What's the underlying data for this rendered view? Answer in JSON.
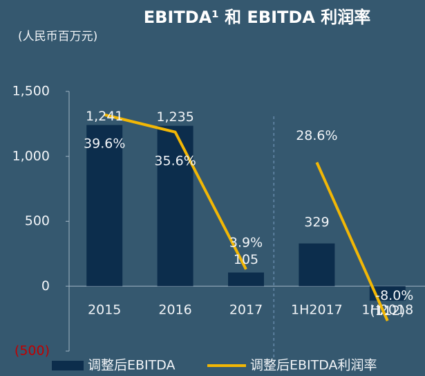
{
  "chart_data": {
    "type": "bar_line",
    "title": "EBITDA¹ 和 EBITDA 利润率",
    "subtitle": "(人民币百万元)",
    "categories": [
      "2015",
      "2016",
      "2017",
      "1H2017",
      "1H2018"
    ],
    "series": [
      {
        "name": "调整后EBITDA",
        "type": "bar",
        "color": "#0c2d4c",
        "values": [
          1241,
          1235,
          105,
          329,
          -112
        ],
        "value_labels": [
          "1,241",
          "1,235",
          "105",
          "329",
          "(112)"
        ]
      },
      {
        "name": "调整后EBITDA利润率",
        "type": "line",
        "axis": "y2",
        "color": "#f2b705",
        "values": [
          39.6,
          35.6,
          3.9,
          28.6,
          -8.0
        ],
        "value_labels": [
          "39.6%",
          "35.6%",
          "3.9%",
          "28.6%",
          "-8.0%"
        ]
      }
    ],
    "ylim": [
      -500,
      1500
    ],
    "yticks": [
      {
        "value": -500,
        "label": "(500)"
      },
      0,
      500,
      {
        "value": 1000,
        "label": "1,000"
      },
      {
        "value": 1500,
        "label": "1,500"
      }
    ],
    "y2lim": [
      -15,
      45
    ],
    "negative_tick_color": "#c00000",
    "divider_after": "2017",
    "legend": "bottom"
  }
}
